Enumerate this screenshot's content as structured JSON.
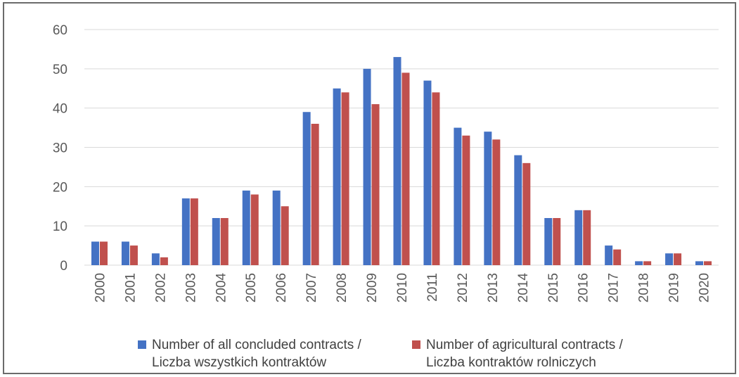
{
  "chart_data": {
    "type": "bar",
    "categories": [
      "2000",
      "2001",
      "2002",
      "2003",
      "2004",
      "2005",
      "2006",
      "2007",
      "2008",
      "2009",
      "2010",
      "2011",
      "2012",
      "2013",
      "2014",
      "2015",
      "2016",
      "2017",
      "2018",
      "2019",
      "2020"
    ],
    "series": [
      {
        "name": "Number of all concluded contracts / Liczba wszystkich kontraktów",
        "name_lines": [
          "Number of all concluded contracts /",
          "Liczba wszystkich kontraktów"
        ],
        "color": "#4472c4",
        "values": [
          6,
          6,
          3,
          17,
          12,
          19,
          19,
          39,
          45,
          50,
          53,
          47,
          35,
          34,
          28,
          12,
          14,
          5,
          1,
          3,
          1
        ]
      },
      {
        "name": "Number of agricultural contracts / Liczba kontraktów rolniczych",
        "name_lines": [
          "Number of agricultural contracts /",
          "Liczba kontraktów rolniczych"
        ],
        "color": "#c0504d",
        "values": [
          6,
          5,
          2,
          17,
          12,
          18,
          15,
          36,
          44,
          41,
          49,
          44,
          33,
          32,
          26,
          12,
          14,
          4,
          1,
          3,
          1
        ]
      }
    ],
    "ylim": [
      0,
      60
    ],
    "yticks": [
      "0",
      "10",
      "20",
      "30",
      "40",
      "50",
      "60"
    ],
    "grid": true,
    "legend_position": "bottom",
    "xlabel": "",
    "ylabel": ""
  }
}
